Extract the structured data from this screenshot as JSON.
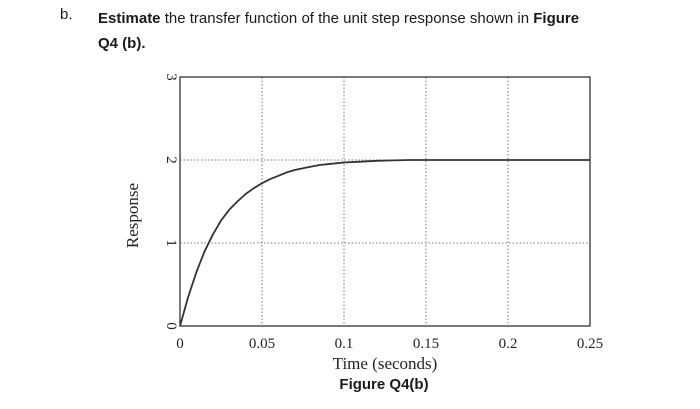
{
  "question": {
    "label": "b.",
    "t1": "Estimate",
    "t2": " the transfer function of the unit step response shown in ",
    "t3": "Figure",
    "t4": "Q4 (b)."
  },
  "caption": "Figure Q4(b)",
  "chart_data": {
    "type": "line",
    "xlabel": "Time (seconds)",
    "ylabel": "Response",
    "xlim": [
      0,
      0.25
    ],
    "ylim": [
      0,
      3
    ],
    "x_ticks": [
      "0",
      "0.05",
      "0.1",
      "0.15",
      "0.2",
      "0.25"
    ],
    "y_ticks": [
      "0",
      "1",
      "2",
      "3"
    ],
    "grid": "dotted",
    "series": [
      {
        "x": [
          0,
          0.005,
          0.01,
          0.015,
          0.02,
          0.025,
          0.03,
          0.035,
          0.04,
          0.045,
          0.05,
          0.055,
          0.06,
          0.065,
          0.07,
          0.075,
          0.08,
          0.085,
          0.09,
          0.095,
          0.1,
          0.11,
          0.12,
          0.13,
          0.14,
          0.15,
          0.2,
          0.25
        ],
        "values": [
          0,
          0.35,
          0.65,
          0.9,
          1.1,
          1.27,
          1.4,
          1.5,
          1.59,
          1.66,
          1.72,
          1.77,
          1.81,
          1.85,
          1.88,
          1.9,
          1.92,
          1.94,
          1.95,
          1.96,
          1.97,
          1.98,
          1.99,
          1.995,
          2.0,
          2.0,
          2.0,
          2.0
        ]
      }
    ]
  }
}
